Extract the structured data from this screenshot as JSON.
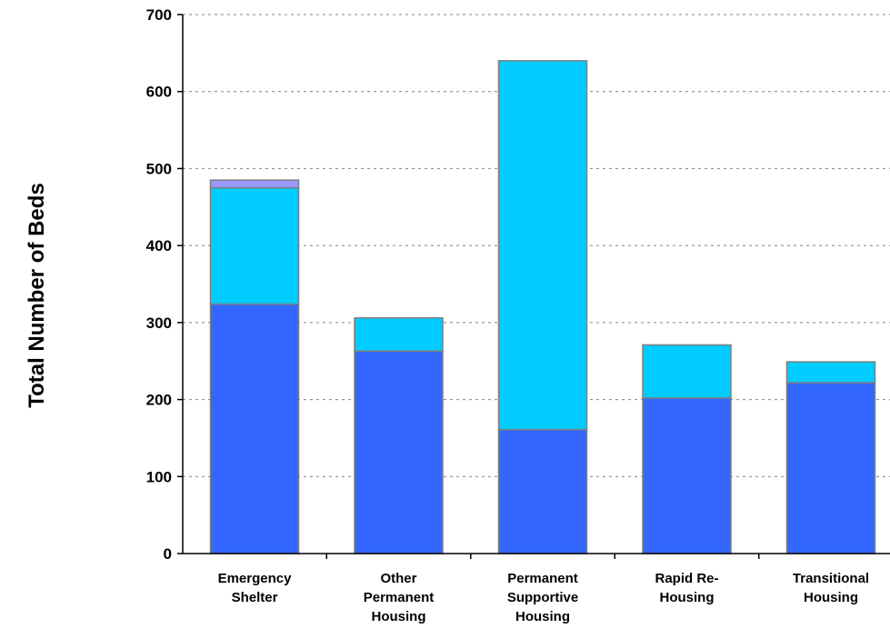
{
  "chart_data": {
    "type": "bar",
    "stacked": true,
    "title": "",
    "xlabel": "",
    "ylabel": "Total Number of Beds",
    "ylim": [
      0,
      700
    ],
    "yticks": [
      0,
      100,
      200,
      300,
      400,
      500,
      600,
      700
    ],
    "grid": true,
    "categories": [
      [
        "Emergency",
        "Shelter"
      ],
      [
        "Other",
        "Permanent",
        "Housing"
      ],
      [
        "Permanent",
        "Supportive",
        "Housing"
      ],
      [
        "Rapid Re-",
        "Housing"
      ],
      [
        "Transitional",
        "Housing"
      ]
    ],
    "series": [
      {
        "color": "#3366ff",
        "values": [
          324,
          263,
          161,
          202,
          222
        ]
      },
      {
        "color": "#00ccff",
        "values": [
          151,
          43,
          479,
          69,
          27
        ]
      },
      {
        "color": "#9999ff",
        "values": [
          10,
          0,
          0,
          0,
          0
        ]
      }
    ]
  }
}
